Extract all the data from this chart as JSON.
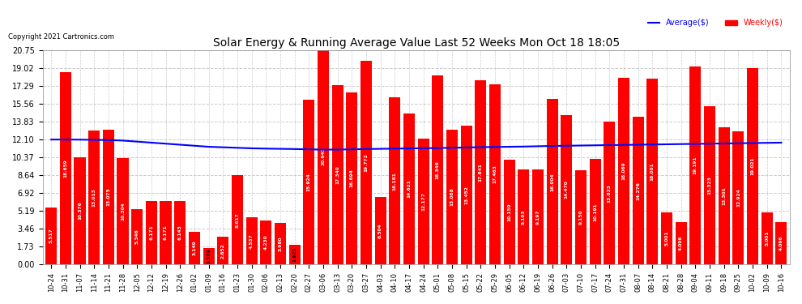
{
  "title": "Solar Energy & Running Average Value Last 52 Weeks Mon Oct 18 18:05",
  "copyright": "Copyright 2021 Cartronics.com",
  "background_color": "#ffffff",
  "bar_color": "#ff0000",
  "avg_line_color": "#0000ff",
  "grid_color": "#cccccc",
  "ylim": [
    0,
    20.75
  ],
  "yticks": [
    0.0,
    1.73,
    3.46,
    5.19,
    6.92,
    8.64,
    10.37,
    12.1,
    13.83,
    15.56,
    17.29,
    19.02,
    20.75
  ],
  "categories": [
    "10-24",
    "10-31",
    "11-07",
    "11-14",
    "11-21",
    "11-28",
    "12-05",
    "12-12",
    "12-19",
    "12-26",
    "01-02",
    "01-09",
    "01-16",
    "01-23",
    "01-30",
    "02-06",
    "02-13",
    "02-20",
    "02-27",
    "03-06",
    "03-13",
    "03-20",
    "03-27",
    "04-03",
    "04-10",
    "04-17",
    "04-24",
    "05-01",
    "05-08",
    "05-15",
    "05-22",
    "05-29",
    "06-05",
    "06-12",
    "06-19",
    "06-26",
    "07-03",
    "07-10",
    "07-17",
    "07-24",
    "07-31",
    "08-07",
    "08-14",
    "08-21",
    "08-28",
    "09-04",
    "09-11",
    "09-18",
    "09-25",
    "10-02",
    "10-09",
    "10-16"
  ],
  "weekly_values": [
    5.517,
    18.659,
    10.376,
    13.013,
    13.075,
    10.304,
    5.346,
    6.171,
    6.171,
    6.143,
    3.149,
    1.579,
    2.652,
    8.617,
    4.537,
    4.23,
    3.98,
    1.921,
    15.924,
    20.943,
    17.34,
    16.694,
    19.772,
    6.504,
    16.181,
    14.621,
    12.177,
    18.346,
    13.088,
    13.452,
    17.841,
    17.463,
    10.159,
    9.193,
    9.197,
    16.004,
    14.47,
    9.15,
    10.191,
    13.823,
    18.069,
    14.276,
    18.001,
    5.001,
    4.096,
    19.191,
    15.323,
    13.301,
    12.924,
    19.021,
    5.001,
    4.096
  ],
  "avg_values": [
    12.1,
    12.1,
    12.09,
    12.07,
    12.05,
    12.0,
    11.9,
    11.8,
    11.7,
    11.6,
    11.5,
    11.4,
    11.35,
    11.3,
    11.25,
    11.22,
    11.2,
    11.18,
    11.15,
    11.12,
    11.13,
    11.15,
    11.18,
    11.2,
    11.22,
    11.24,
    11.26,
    11.28,
    11.3,
    11.33,
    11.36,
    11.38,
    11.4,
    11.42,
    11.45,
    11.48,
    11.5,
    11.52,
    11.54,
    11.56,
    11.58,
    11.6,
    11.62,
    11.64,
    11.66,
    11.68,
    11.7,
    11.72,
    11.74,
    11.76,
    11.78,
    11.8
  ],
  "legend_avg_label": "Average($)",
  "legend_weekly_label": "Weekly($)"
}
